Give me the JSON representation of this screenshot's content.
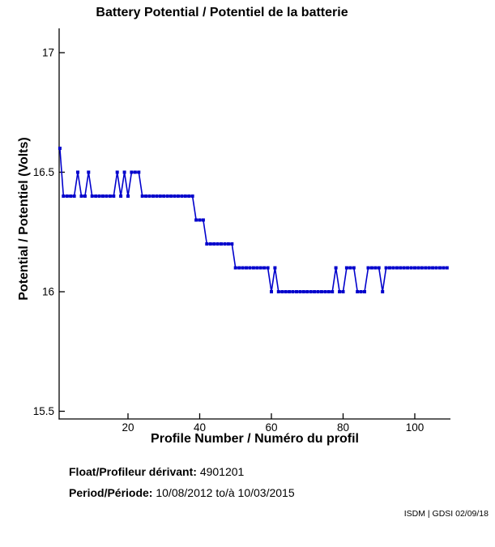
{
  "chart_data": {
    "type": "line",
    "title": "Battery Potential / Potentiel de la batterie",
    "xlabel": "Profile Number / Numéro du profil",
    "ylabel": "Potential / Potentiel (Volts)",
    "xlim": [
      1,
      110
    ],
    "ylim": [
      15.5,
      17.05
    ],
    "grid": false,
    "legend": "none",
    "marker": "filled-square",
    "line_color": "#0000cc",
    "axis_color": "#000000",
    "x_ticks": [
      {
        "v": 20,
        "label": "20"
      },
      {
        "v": 40,
        "label": "40"
      },
      {
        "v": 60,
        "label": "60"
      },
      {
        "v": 80,
        "label": "80"
      },
      {
        "v": 100,
        "label": "100"
      }
    ],
    "y_ticks": [
      {
        "v": 17,
        "label": "17"
      },
      {
        "v": 16.5,
        "label": "16.5"
      },
      {
        "v": 16,
        "label": "16"
      },
      {
        "v": 15.5,
        "label": "15.5"
      }
    ],
    "series": [
      {
        "name": "battery-potential-volts",
        "points": [
          [
            1,
            16.6
          ],
          [
            2,
            16.4
          ],
          [
            3,
            16.4
          ],
          [
            4,
            16.4
          ],
          [
            5,
            16.4
          ],
          [
            6,
            16.5
          ],
          [
            7,
            16.4
          ],
          [
            8,
            16.4
          ],
          [
            9,
            16.5
          ],
          [
            10,
            16.4
          ],
          [
            11,
            16.4
          ],
          [
            12,
            16.4
          ],
          [
            13,
            16.4
          ],
          [
            14,
            16.4
          ],
          [
            15,
            16.4
          ],
          [
            16,
            16.4
          ],
          [
            17,
            16.5
          ],
          [
            18,
            16.4
          ],
          [
            19,
            16.5
          ],
          [
            20,
            16.4
          ],
          [
            21,
            16.5
          ],
          [
            22,
            16.5
          ],
          [
            23,
            16.5
          ],
          [
            24,
            16.4
          ],
          [
            25,
            16.4
          ],
          [
            26,
            16.4
          ],
          [
            27,
            16.4
          ],
          [
            28,
            16.4
          ],
          [
            29,
            16.4
          ],
          [
            30,
            16.4
          ],
          [
            31,
            16.4
          ],
          [
            32,
            16.4
          ],
          [
            33,
            16.4
          ],
          [
            34,
            16.4
          ],
          [
            35,
            16.4
          ],
          [
            36,
            16.4
          ],
          [
            37,
            16.4
          ],
          [
            38,
            16.4
          ],
          [
            39,
            16.3
          ],
          [
            40,
            16.3
          ],
          [
            41,
            16.3
          ],
          [
            42,
            16.2
          ],
          [
            43,
            16.2
          ],
          [
            44,
            16.2
          ],
          [
            45,
            16.2
          ],
          [
            46,
            16.2
          ],
          [
            47,
            16.2
          ],
          [
            48,
            16.2
          ],
          [
            49,
            16.2
          ],
          [
            50,
            16.1
          ],
          [
            51,
            16.1
          ],
          [
            52,
            16.1
          ],
          [
            53,
            16.1
          ],
          [
            54,
            16.1
          ],
          [
            55,
            16.1
          ],
          [
            56,
            16.1
          ],
          [
            57,
            16.1
          ],
          [
            58,
            16.1
          ],
          [
            59,
            16.1
          ],
          [
            60,
            16.0
          ],
          [
            61,
            16.1
          ],
          [
            62,
            16.0
          ],
          [
            63,
            16.0
          ],
          [
            64,
            16.0
          ],
          [
            65,
            16.0
          ],
          [
            66,
            16.0
          ],
          [
            67,
            16.0
          ],
          [
            68,
            16.0
          ],
          [
            69,
            16.0
          ],
          [
            70,
            16.0
          ],
          [
            71,
            16.0
          ],
          [
            72,
            16.0
          ],
          [
            73,
            16.0
          ],
          [
            74,
            16.0
          ],
          [
            75,
            16.0
          ],
          [
            76,
            16.0
          ],
          [
            77,
            16.0
          ],
          [
            78,
            16.1
          ],
          [
            79,
            16.0
          ],
          [
            80,
            16.0
          ],
          [
            81,
            16.1
          ],
          [
            82,
            16.1
          ],
          [
            83,
            16.1
          ],
          [
            84,
            16.0
          ],
          [
            85,
            16.0
          ],
          [
            86,
            16.0
          ],
          [
            87,
            16.1
          ],
          [
            88,
            16.1
          ],
          [
            89,
            16.1
          ],
          [
            90,
            16.1
          ],
          [
            91,
            16.0
          ],
          [
            92,
            16.1
          ],
          [
            93,
            16.1
          ],
          [
            94,
            16.1
          ],
          [
            95,
            16.1
          ],
          [
            96,
            16.1
          ],
          [
            97,
            16.1
          ],
          [
            98,
            16.1
          ],
          [
            99,
            16.1
          ],
          [
            100,
            16.1
          ],
          [
            101,
            16.1
          ],
          [
            102,
            16.1
          ],
          [
            103,
            16.1
          ],
          [
            104,
            16.1
          ],
          [
            105,
            16.1
          ],
          [
            106,
            16.1
          ],
          [
            107,
            16.1
          ],
          [
            108,
            16.1
          ],
          [
            109,
            16.1
          ]
        ]
      }
    ]
  },
  "footer": {
    "float_label": "Float/Profileur dérivant:",
    "float_value": "4901201",
    "period_label": "Period/Période:",
    "period_value": "10/08/2012  to/à  10/03/2015",
    "credit": "ISDM | GDSI 02/09/18"
  }
}
